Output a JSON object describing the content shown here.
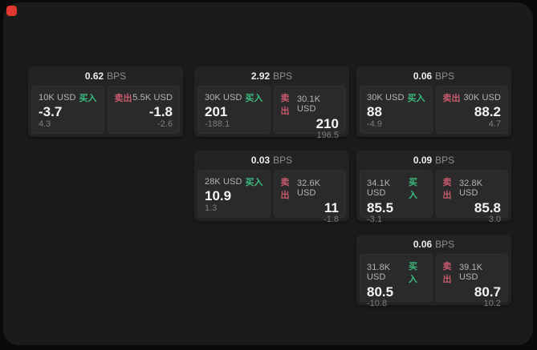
{
  "labels": {
    "bps_unit": "BPS",
    "buy": "买入",
    "sell": "卖出"
  },
  "colors": {
    "background": "#0a0a0b",
    "surface": "#1b1b1c",
    "card": "#232324",
    "panel": "#2a2a2b",
    "buy_accent": "#3bbd7e",
    "sell_accent": "#c75a6c",
    "app_icon_red": "#e0382e"
  },
  "cards": [
    {
      "bps": "0.62",
      "buy": {
        "amount": "10K USD",
        "price": "-3.7",
        "delta": "4.3"
      },
      "sell": {
        "amount": "5.5K USD",
        "price": "-1.8",
        "delta": "-2.6"
      }
    },
    {
      "bps": "2.92",
      "buy": {
        "amount": "30K USD",
        "price": "201",
        "delta": "-188.1"
      },
      "sell": {
        "amount": "30.1K USD",
        "price": "210",
        "delta": "196.5"
      }
    },
    {
      "bps": "0.06",
      "buy": {
        "amount": "30K USD",
        "price": "88",
        "delta": "-4.9"
      },
      "sell": {
        "amount": "30K USD",
        "price": "88.2",
        "delta": "4.7"
      }
    },
    {
      "bps": "0.03",
      "buy": {
        "amount": "28K USD",
        "price": "10.9",
        "delta": "1.3"
      },
      "sell": {
        "amount": "32.6K USD",
        "price": "11",
        "delta": "-1.8"
      }
    },
    {
      "bps": "0.09",
      "buy": {
        "amount": "34.1K USD",
        "price": "85.5",
        "delta": "-3.1"
      },
      "sell": {
        "amount": "32.8K USD",
        "price": "85.8",
        "delta": "3.0"
      }
    },
    {
      "bps": "0.06",
      "buy": {
        "amount": "31.8K USD",
        "price": "80.5",
        "delta": "-10.8"
      },
      "sell": {
        "amount": "39.1K USD",
        "price": "80.7",
        "delta": "10.2"
      }
    }
  ]
}
